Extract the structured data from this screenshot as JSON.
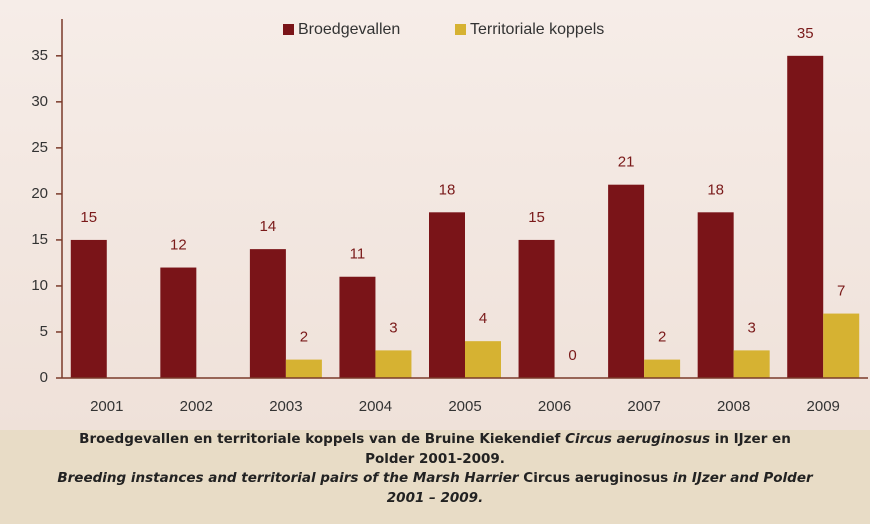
{
  "chart_data": {
    "type": "bar",
    "categories": [
      "2001",
      "2002",
      "2003",
      "2004",
      "2005",
      "2006",
      "2007",
      "2008",
      "2009"
    ],
    "series": [
      {
        "name": "Broedgevallen",
        "color": "#7a1418",
        "values": [
          15,
          12,
          14,
          11,
          18,
          15,
          21,
          18,
          35
        ]
      },
      {
        "name": "Territoriale koppels",
        "color": "#d6b232",
        "values": [
          null,
          null,
          2,
          3,
          4,
          0,
          2,
          3,
          7
        ]
      }
    ],
    "ylim": [
      0,
      39
    ],
    "yticks": [
      0,
      5,
      10,
      15,
      20,
      25,
      30,
      35
    ],
    "grid": false,
    "legend": "top"
  },
  "caption": [
    [
      {
        "text": "Broedgevallen en territoriale koppels van de Bruine Kiekendief ",
        "italic": false
      },
      {
        "text": "Circus aeruginosus",
        "italic": true
      },
      {
        "text": " in IJzer en",
        "italic": false
      }
    ],
    [
      {
        "text": "Polder 2001-2009.",
        "italic": false
      }
    ],
    [
      {
        "text": "Breeding instances and territorial pairs of the Marsh Harrier ",
        "italic": true
      },
      {
        "text": "Circus aeruginosus",
        "italic": false
      },
      {
        "text": " in IJzer and Polder",
        "italic": true
      }
    ],
    [
      {
        "text": "2001 – 2009.",
        "italic": true
      }
    ]
  ]
}
